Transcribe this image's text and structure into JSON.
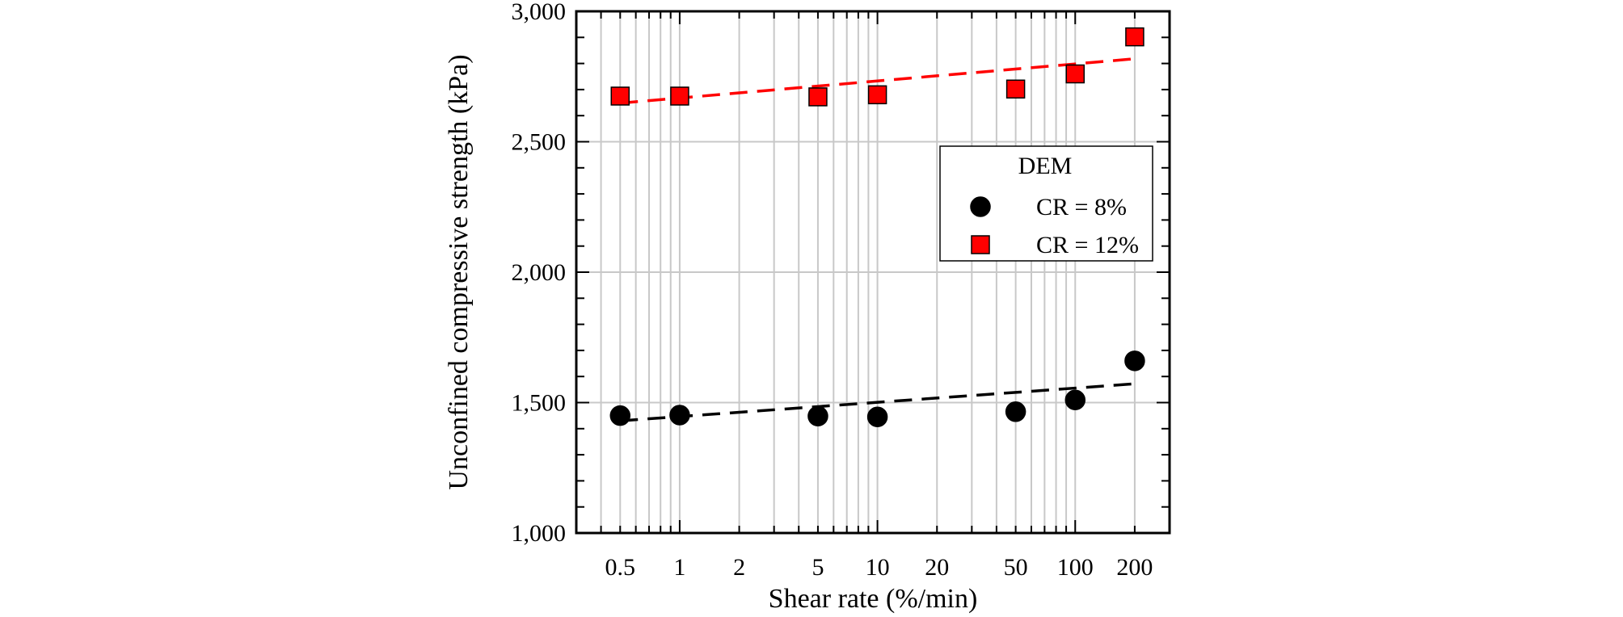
{
  "chart_data": {
    "type": "scatter",
    "title": "",
    "xlabel": "Shear rate (%/min)",
    "ylabel": "Unconfined compressive strength (kPa)",
    "xscale": "log",
    "xlim": [
      0.3,
      300
    ],
    "ylim": [
      1000,
      3000
    ],
    "xticks": [
      0.5,
      1,
      2,
      5,
      10,
      20,
      50,
      100,
      200
    ],
    "xtick_labels": [
      "0.5",
      "1",
      "2",
      "5",
      "10",
      "20",
      "50",
      "100",
      "200"
    ],
    "yticks": [
      1000,
      1500,
      2000,
      2500,
      3000
    ],
    "ytick_labels": [
      "1,000",
      "1,500",
      "2,000",
      "2,500",
      "3,000"
    ],
    "grid": true,
    "legend": {
      "title": "DEM",
      "position": "upper-right"
    },
    "series": [
      {
        "name": "CR = 8%",
        "marker": "circle",
        "color": "#000000",
        "x": [
          0.5,
          1,
          5,
          10,
          50,
          100,
          200
        ],
        "y": [
          1450,
          1452,
          1448,
          1445,
          1465,
          1510,
          1660
        ],
        "trend": {
          "x": [
            0.5,
            200
          ],
          "y": [
            1430,
            1572
          ],
          "style": "dashed",
          "color": "#000000"
        }
      },
      {
        "name": "CR = 12%",
        "marker": "square",
        "color": "#ff0000",
        "x": [
          0.5,
          1,
          5,
          10,
          50,
          100,
          200
        ],
        "y": [
          2675,
          2675,
          2672,
          2680,
          2702,
          2760,
          2902
        ],
        "trend": {
          "x": [
            0.5,
            200
          ],
          "y": [
            2648,
            2818
          ],
          "style": "dashed",
          "color": "#ff0000"
        }
      }
    ]
  }
}
